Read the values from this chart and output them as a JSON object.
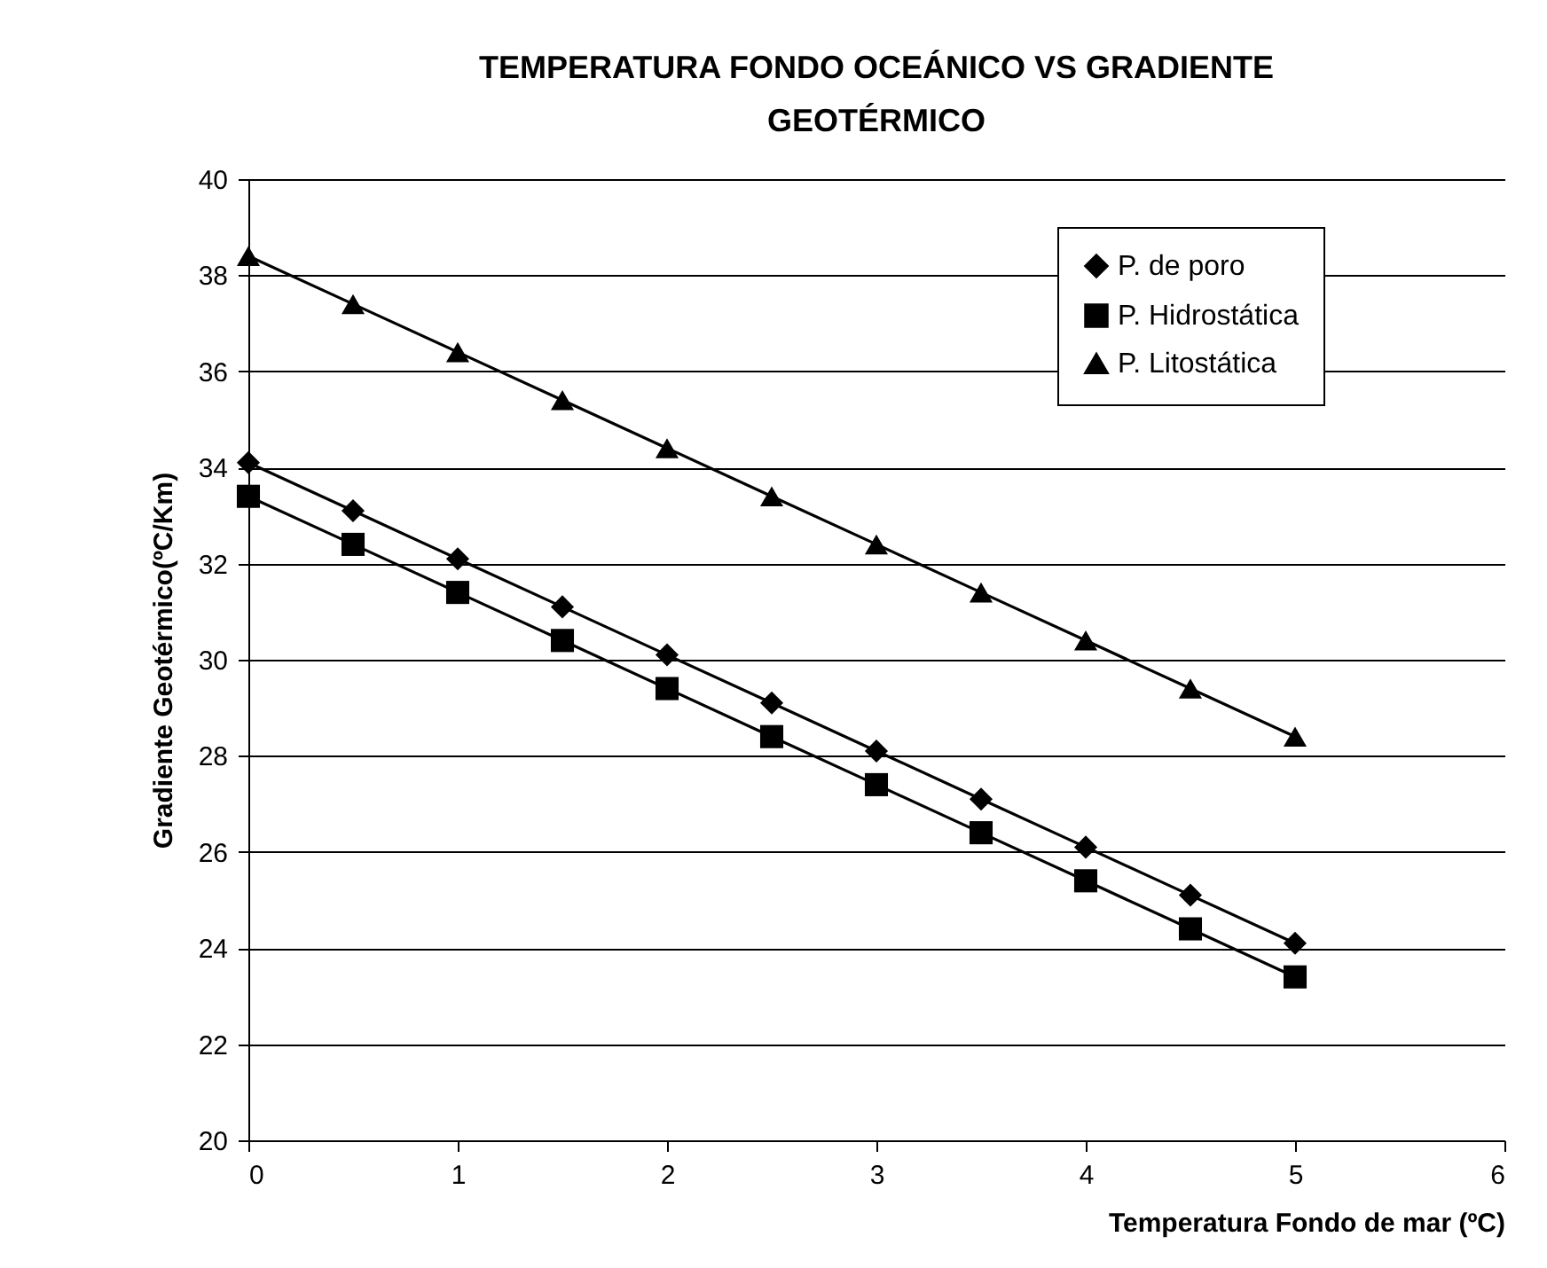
{
  "chart_data": {
    "type": "line",
    "title": "TEMPERATURA FONDO OCEÁNICO VS GRADIENTE GEOTÉRMICO",
    "xlabel": "Temperatura Fondo de mar (ºC)",
    "ylabel": "Gradiente Geotérmico(ºC/Km)",
    "x": [
      0,
      0.5,
      1,
      1.5,
      2,
      2.5,
      3,
      3.5,
      4,
      4.5,
      5
    ],
    "series": [
      {
        "name": "P. de poro",
        "color": "#000000",
        "marker": "diamond",
        "values": [
          34.1,
          33.1,
          32.1,
          31.1,
          30.1,
          29.1,
          28.1,
          27.1,
          26.1,
          25.1,
          24.1
        ]
      },
      {
        "name": "P. Hidrostática",
        "color": "#000000",
        "marker": "square",
        "values": [
          33.4,
          32.4,
          31.4,
          30.4,
          29.4,
          28.4,
          27.4,
          26.4,
          25.4,
          24.4,
          23.4
        ]
      },
      {
        "name": "P. Litostática",
        "color": "#000000",
        "marker": "triangle",
        "values": [
          38.4,
          37.4,
          36.4,
          35.4,
          34.4,
          33.4,
          32.4,
          31.4,
          30.4,
          29.4,
          28.4
        ]
      }
    ],
    "xlim": [
      0,
      6
    ],
    "xticks": [
      0,
      1,
      2,
      3,
      4,
      5,
      6
    ],
    "ylim": [
      20,
      40
    ],
    "yticks": [
      20,
      22,
      24,
      26,
      28,
      30,
      32,
      34,
      36,
      38,
      40
    ],
    "grid": "y",
    "legend": "top right",
    "line_style": "solid"
  }
}
